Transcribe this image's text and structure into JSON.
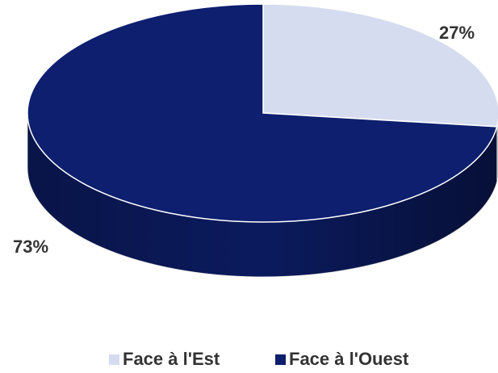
{
  "chart_data": {
    "type": "pie",
    "categories": [
      "Face à l'Est",
      "Face à l'Ouest"
    ],
    "values": [
      27,
      73
    ],
    "value_labels": [
      "27%",
      "73%"
    ],
    "colors": [
      "#d6dcef",
      "#0d1f6e"
    ],
    "legend": "bottom"
  }
}
